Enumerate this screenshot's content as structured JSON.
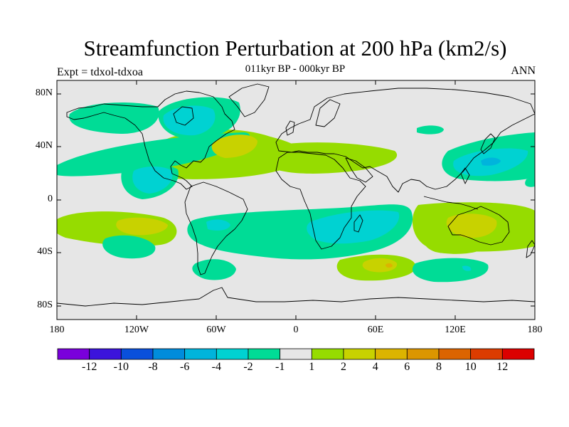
{
  "title": "Streamfunction Perturbation at 200 hPa (km2/s)",
  "subtitle": "011kyr BP - 000kyr BP",
  "experiment_label": "Expt = tdxol-tdxoa",
  "season_label": "ANN",
  "lat_ticks": [
    "80N",
    "40N",
    "0",
    "40S",
    "80S"
  ],
  "lon_ticks": [
    "180",
    "120W",
    "60W",
    "0",
    "60E",
    "120E",
    "180"
  ],
  "colorbar": {
    "labels": [
      "-12",
      "-10",
      "-8",
      "-6",
      "-4",
      "-2",
      "-1",
      "1",
      "2",
      "4",
      "6",
      "8",
      "10",
      "12"
    ],
    "colors": [
      "#7a00dc",
      "#3c14dc",
      "#0a50dc",
      "#008cdc",
      "#00b4dc",
      "#00d2d2",
      "#00dc96",
      "#e6e6e6",
      "#96dc00",
      "#c8d200",
      "#dcb400",
      "#dc9600",
      "#dc6400",
      "#dc3c00",
      "#dc0000"
    ]
  },
  "chart_data": {
    "type": "heatmap",
    "title": "Streamfunction Perturbation at 200 hPa (km2/s)",
    "subtitle": "011kyr BP - 000kyr BP",
    "experiment": "Expt = tdxol-tdxoa",
    "season": "ANN",
    "xlim": [
      -180,
      180
    ],
    "ylim": [
      -90,
      90
    ],
    "levels": [
      -12,
      -10,
      -8,
      -6,
      -4,
      -2,
      -1,
      1,
      2,
      4,
      6,
      8,
      10,
      12
    ],
    "features": [
      {
        "lon": -150,
        "lat": 60,
        "value": -1.5
      },
      {
        "lon": -100,
        "lat": 62,
        "value": -2.5
      },
      {
        "lon": -40,
        "lat": 40,
        "value": 3
      },
      {
        "lon": -110,
        "lat": 15,
        "value": -3
      },
      {
        "lon": -125,
        "lat": -20,
        "value": 3
      },
      {
        "lon": -115,
        "lat": -35,
        "value": -1.5
      },
      {
        "lon": -63,
        "lat": -20,
        "value": -3
      },
      {
        "lon": -60,
        "lat": -50,
        "value": -1.5
      },
      {
        "lon": 20,
        "lat": 30,
        "value": 1.5
      },
      {
        "lon": 45,
        "lat": -25,
        "value": -3
      },
      {
        "lon": 65,
        "lat": -50,
        "value": 4
      },
      {
        "lon": 135,
        "lat": 30,
        "value": -3
      },
      {
        "lon": 135,
        "lat": -25,
        "value": 3
      },
      {
        "lon": 135,
        "lat": -50,
        "value": -2
      },
      {
        "lon": 95,
        "lat": 50,
        "value": -1.5
      }
    ]
  }
}
